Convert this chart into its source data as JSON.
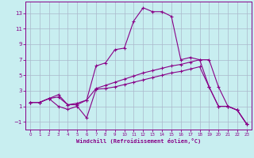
{
  "xlabel": "Windchill (Refroidissement éolien,°C)",
  "bg_color": "#c8eef0",
  "grid_color": "#aab8cc",
  "line_color": "#880088",
  "xlim": [
    -0.5,
    23.5
  ],
  "ylim": [
    -2.0,
    14.5
  ],
  "xticks": [
    0,
    1,
    2,
    3,
    4,
    5,
    6,
    7,
    8,
    9,
    10,
    11,
    12,
    13,
    14,
    15,
    16,
    17,
    18,
    19,
    20,
    21,
    22,
    23
  ],
  "yticks": [
    -1,
    1,
    3,
    5,
    7,
    9,
    11,
    13
  ],
  "series1_y": [
    1.5,
    1.5,
    2.0,
    2.2,
    1.2,
    1.2,
    1.8,
    6.2,
    6.6,
    8.3,
    8.5,
    12.0,
    13.7,
    13.2,
    13.2,
    12.6,
    7.0,
    7.3,
    7.0,
    3.5,
    1.0,
    1.0,
    0.5,
    -1.3
  ],
  "series2_y": [
    1.5,
    1.5,
    2.0,
    2.5,
    1.2,
    1.4,
    1.8,
    3.3,
    3.7,
    4.1,
    4.5,
    4.9,
    5.3,
    5.6,
    5.9,
    6.2,
    6.4,
    6.7,
    7.0,
    7.0,
    3.5,
    1.0,
    0.5,
    -1.3
  ],
  "series3_y": [
    1.5,
    1.5,
    2.0,
    1.0,
    0.6,
    1.0,
    -0.5,
    3.2,
    3.3,
    3.5,
    3.8,
    4.1,
    4.4,
    4.7,
    5.0,
    5.3,
    5.5,
    5.8,
    6.1,
    3.5,
    1.0,
    1.0,
    0.5,
    -1.3
  ]
}
